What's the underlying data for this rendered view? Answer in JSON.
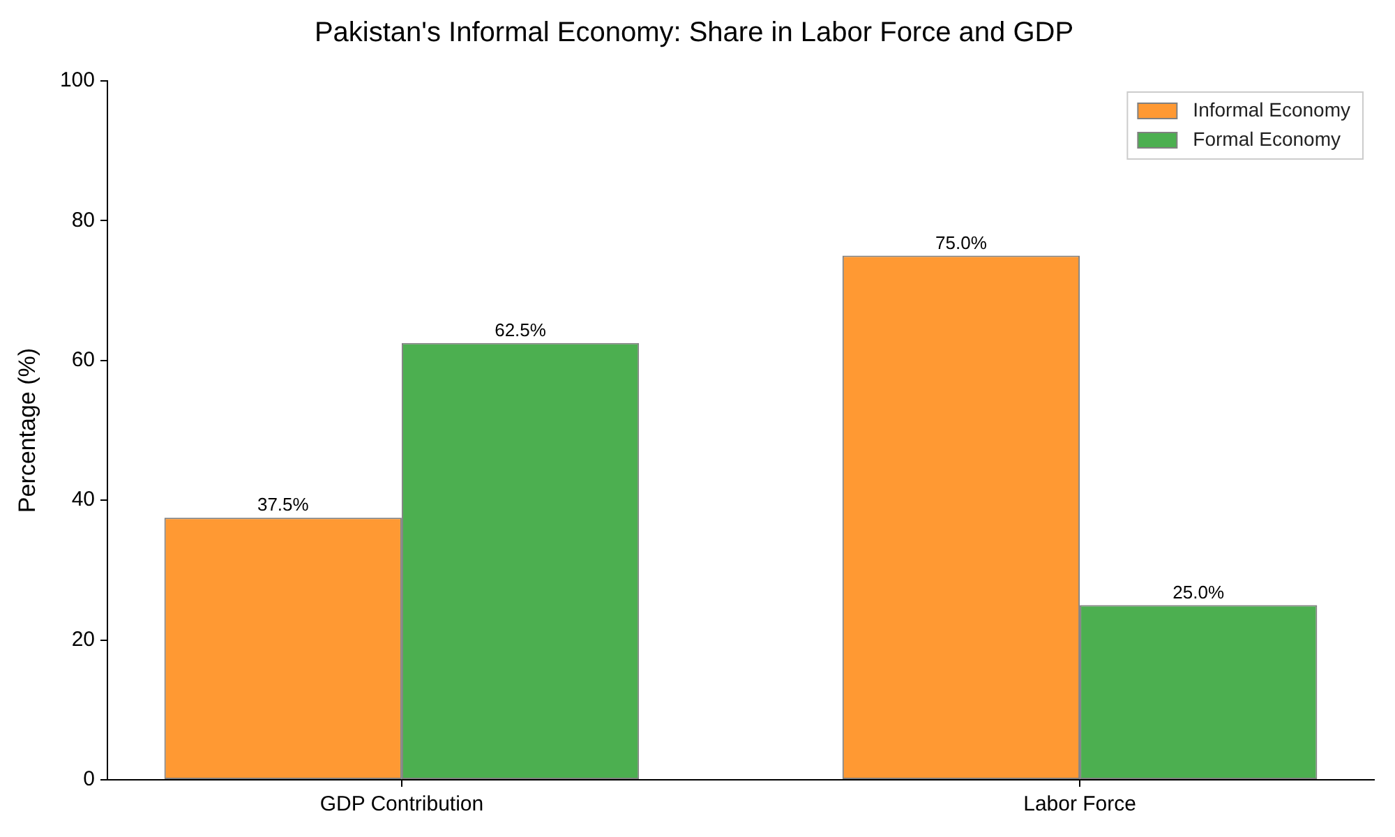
{
  "chart_data": {
    "type": "bar",
    "title": "Pakistan's Informal Economy: Share in Labor Force and GDP",
    "ylabel": "Percentage (%)",
    "categories": [
      "GDP Contribution",
      "Labor Force"
    ],
    "series": [
      {
        "name": "Informal Economy",
        "color": "#ff9933",
        "values": [
          37.5,
          75.0
        ],
        "value_labels": [
          "37.5%",
          "75.0%"
        ]
      },
      {
        "name": "Formal Economy",
        "color": "#4caf50",
        "values": [
          62.5,
          25.0
        ],
        "value_labels": [
          "62.5%",
          "25.0%"
        ]
      }
    ],
    "ylim": [
      0,
      100
    ],
    "yticks": [
      0,
      20,
      40,
      60,
      80,
      100
    ],
    "grid": false,
    "legend": "top right"
  }
}
